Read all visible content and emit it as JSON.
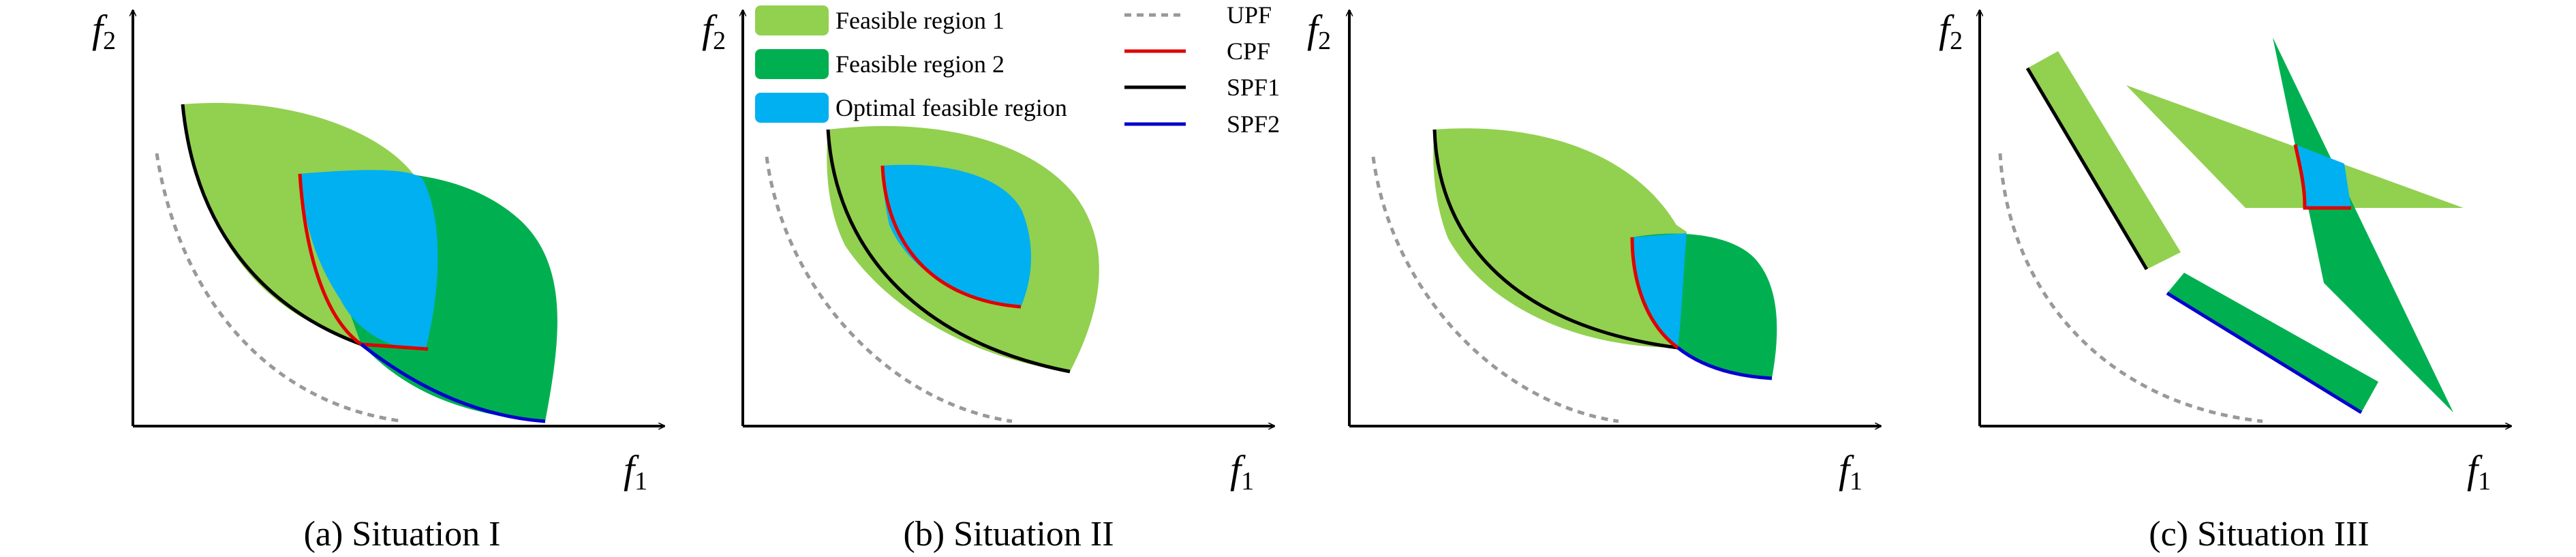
{
  "colors": {
    "feasible1": "#92d050",
    "feasible2": "#00b050",
    "optimal": "#00b0f0",
    "upf": "#999999",
    "cpf": "#e00000",
    "spf1": "#000000",
    "spf2": "#0000cc",
    "axis": "#000000"
  },
  "axes": {
    "x_label": "f",
    "x_sub": "1",
    "y_label": "f",
    "y_sub": "2"
  },
  "legend": {
    "regions": [
      {
        "key": "feasible1",
        "label": "Feasible region 1"
      },
      {
        "key": "feasible2",
        "label": "Feasible region 2"
      },
      {
        "key": "optimal",
        "label": "Optimal feasible region"
      }
    ],
    "lines": [
      {
        "key": "upf",
        "label": "UPF",
        "style": "dashed"
      },
      {
        "key": "cpf",
        "label": "CPF",
        "style": "solid"
      },
      {
        "key": "spf1",
        "label": "SPF1",
        "style": "solid"
      },
      {
        "key": "spf2",
        "label": "SPF2",
        "style": "solid"
      }
    ]
  },
  "panels": [
    {
      "id": "situation-1",
      "caption": "(a) Situation I"
    },
    {
      "id": "situation-2",
      "caption": "(b) Situation II"
    },
    {
      "id": "situation-3",
      "caption": "(c) Situation III"
    }
  ]
}
